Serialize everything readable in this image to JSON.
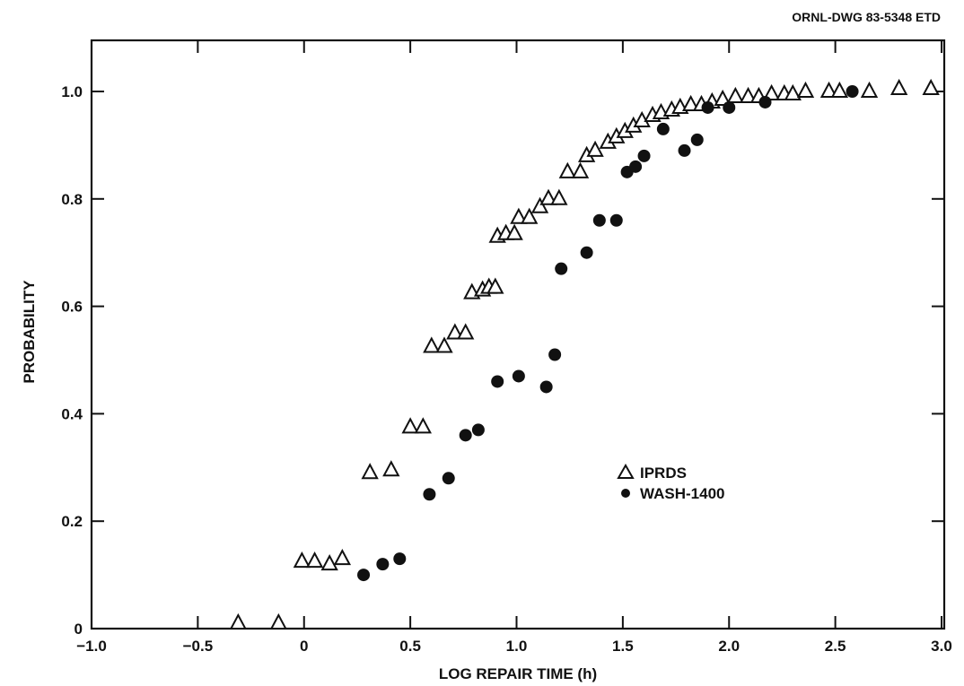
{
  "drawing_id": "ORNL-DWG 83-5348 ETD",
  "colors": {
    "ink": "#111111",
    "background": "#ffffff"
  },
  "chart_data": {
    "type": "scatter",
    "title": "",
    "xlabel": "LOG REPAIR TIME (h)",
    "ylabel": "PROBABILITY",
    "xlim": [
      -1.0,
      3.0
    ],
    "ylim": [
      0,
      1.1
    ],
    "grid": false,
    "legend_position": "center-right",
    "x_ticks": [
      {
        "value": -1.0,
        "label": "−1.0"
      },
      {
        "value": -0.5,
        "label": "−0.5"
      },
      {
        "value": 0,
        "label": "0"
      },
      {
        "value": 0.5,
        "label": "0.5"
      },
      {
        "value": 1.0,
        "label": "1.0"
      },
      {
        "value": 1.5,
        "label": "1.5"
      },
      {
        "value": 2.0,
        "label": "2.0"
      },
      {
        "value": 2.5,
        "label": "2.5"
      },
      {
        "value": 3.0,
        "label": "3.0"
      }
    ],
    "y_ticks": [
      {
        "value": 0,
        "label": "0"
      },
      {
        "value": 0.2,
        "label": "0.2"
      },
      {
        "value": 0.4,
        "label": "0.4"
      },
      {
        "value": 0.6,
        "label": "0.6"
      },
      {
        "value": 0.8,
        "label": "0.8"
      },
      {
        "value": 1.0,
        "label": "1.0"
      }
    ],
    "series": [
      {
        "name": "IPRDS",
        "marker": "triangle-open",
        "points": [
          [
            -0.31,
            0.01
          ],
          [
            -0.12,
            0.01
          ],
          [
            -0.01,
            0.125
          ],
          [
            0.05,
            0.125
          ],
          [
            0.12,
            0.12
          ],
          [
            0.18,
            0.13
          ],
          [
            0.31,
            0.29
          ],
          [
            0.41,
            0.295
          ],
          [
            0.5,
            0.375
          ],
          [
            0.56,
            0.375
          ],
          [
            0.6,
            0.525
          ],
          [
            0.66,
            0.525
          ],
          [
            0.71,
            0.55
          ],
          [
            0.76,
            0.55
          ],
          [
            0.79,
            0.625
          ],
          [
            0.84,
            0.63
          ],
          [
            0.87,
            0.635
          ],
          [
            0.9,
            0.635
          ],
          [
            0.91,
            0.73
          ],
          [
            0.95,
            0.735
          ],
          [
            0.99,
            0.735
          ],
          [
            1.01,
            0.765
          ],
          [
            1.06,
            0.765
          ],
          [
            1.11,
            0.785
          ],
          [
            1.15,
            0.8
          ],
          [
            1.2,
            0.8
          ],
          [
            1.24,
            0.85
          ],
          [
            1.3,
            0.85
          ],
          [
            1.33,
            0.88
          ],
          [
            1.37,
            0.89
          ],
          [
            1.43,
            0.905
          ],
          [
            1.47,
            0.915
          ],
          [
            1.51,
            0.925
          ],
          [
            1.55,
            0.935
          ],
          [
            1.59,
            0.945
          ],
          [
            1.64,
            0.955
          ],
          [
            1.68,
            0.96
          ],
          [
            1.73,
            0.965
          ],
          [
            1.77,
            0.97
          ],
          [
            1.82,
            0.975
          ],
          [
            1.87,
            0.975
          ],
          [
            1.92,
            0.98
          ],
          [
            1.97,
            0.985
          ],
          [
            2.03,
            0.99
          ],
          [
            2.09,
            0.99
          ],
          [
            2.14,
            0.99
          ],
          [
            2.2,
            0.995
          ],
          [
            2.26,
            0.995
          ],
          [
            2.3,
            0.995
          ],
          [
            2.36,
            1.0
          ],
          [
            2.47,
            1.0
          ],
          [
            2.52,
            1.0
          ],
          [
            2.66,
            1.0
          ],
          [
            2.8,
            1.005
          ],
          [
            2.95,
            1.005
          ]
        ]
      },
      {
        "name": "WASH-1400",
        "marker": "circle-filled",
        "points": [
          [
            0.28,
            0.1
          ],
          [
            0.37,
            0.12
          ],
          [
            0.45,
            0.13
          ],
          [
            0.59,
            0.25
          ],
          [
            0.68,
            0.28
          ],
          [
            0.76,
            0.36
          ],
          [
            0.82,
            0.37
          ],
          [
            0.91,
            0.46
          ],
          [
            1.01,
            0.47
          ],
          [
            1.14,
            0.45
          ],
          [
            1.18,
            0.51
          ],
          [
            1.21,
            0.67
          ],
          [
            1.33,
            0.7
          ],
          [
            1.39,
            0.76
          ],
          [
            1.47,
            0.76
          ],
          [
            1.52,
            0.85
          ],
          [
            1.56,
            0.86
          ],
          [
            1.6,
            0.88
          ],
          [
            1.69,
            0.93
          ],
          [
            1.79,
            0.89
          ],
          [
            1.85,
            0.91
          ],
          [
            1.9,
            0.97
          ],
          [
            2.0,
            0.97
          ],
          [
            2.17,
            0.98
          ],
          [
            2.58,
            1.0
          ]
        ]
      }
    ]
  }
}
